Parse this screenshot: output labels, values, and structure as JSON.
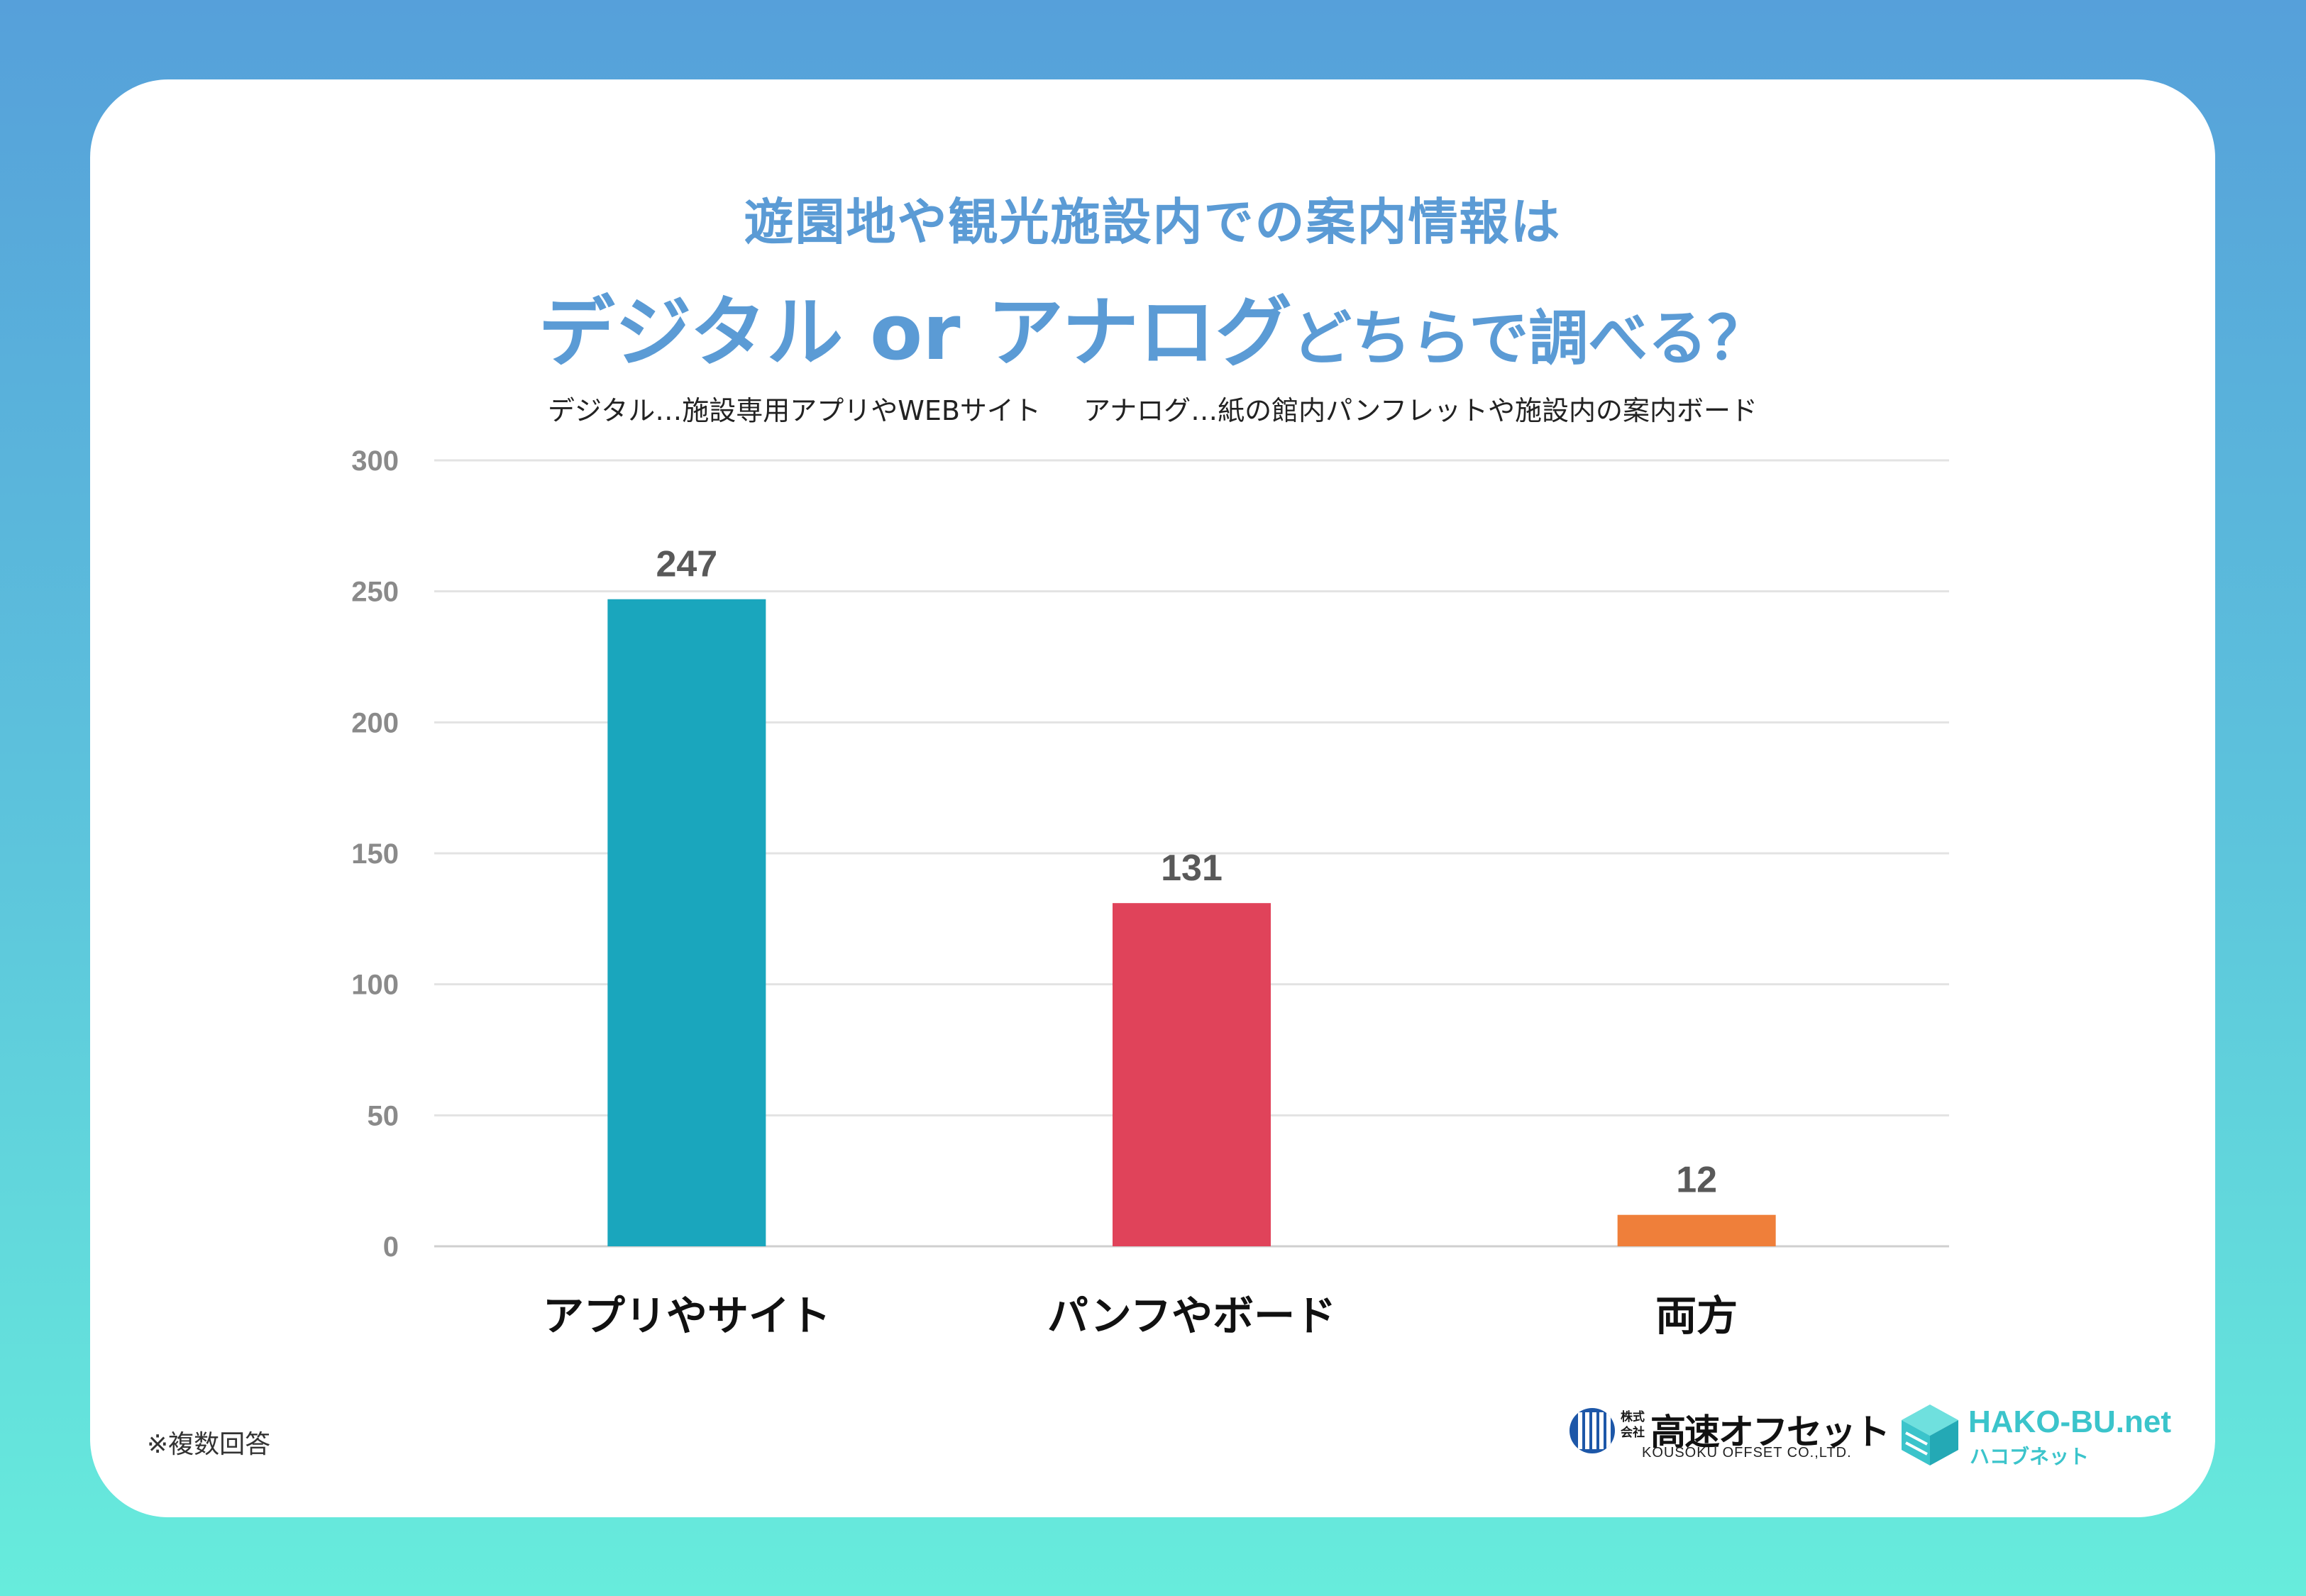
{
  "header": {
    "title_line1": "遊園地や観光施設内での案内情報は",
    "title_line2_main": "デジタル or アナログ",
    "title_line2_tail": "どちらで調べる？",
    "definition_digital": "デジタル…施設専用アプリやWEBサイト",
    "definition_analog": "アナログ…紙の館内パンフレットや施設内の案内ボード"
  },
  "chart_data": {
    "type": "bar",
    "title": "遊園地や観光施設内での案内情報は デジタル or アナログ どちらで調べる？",
    "categories": [
      "アプリやサイト",
      "パンフやボード",
      "両方"
    ],
    "values": [
      247,
      131,
      12
    ],
    "colors": [
      "#1aa6bd",
      "#e0435a",
      "#ef7f3a"
    ],
    "ylim": [
      0,
      300
    ],
    "yticks": [
      0,
      50,
      100,
      150,
      200,
      250,
      300
    ],
    "xlabel": "",
    "ylabel": "",
    "grid": true,
    "legend": "none"
  },
  "footer": {
    "note": "※複数回答",
    "logo_company_prefix": "株式会社",
    "logo_company_name": "高速オフセット",
    "logo_company_en": "KOUSOKU OFFSET CO.,LTD.",
    "logo_site_name": "HAKO-BU.net",
    "logo_site_kana": "ハコブネット"
  }
}
